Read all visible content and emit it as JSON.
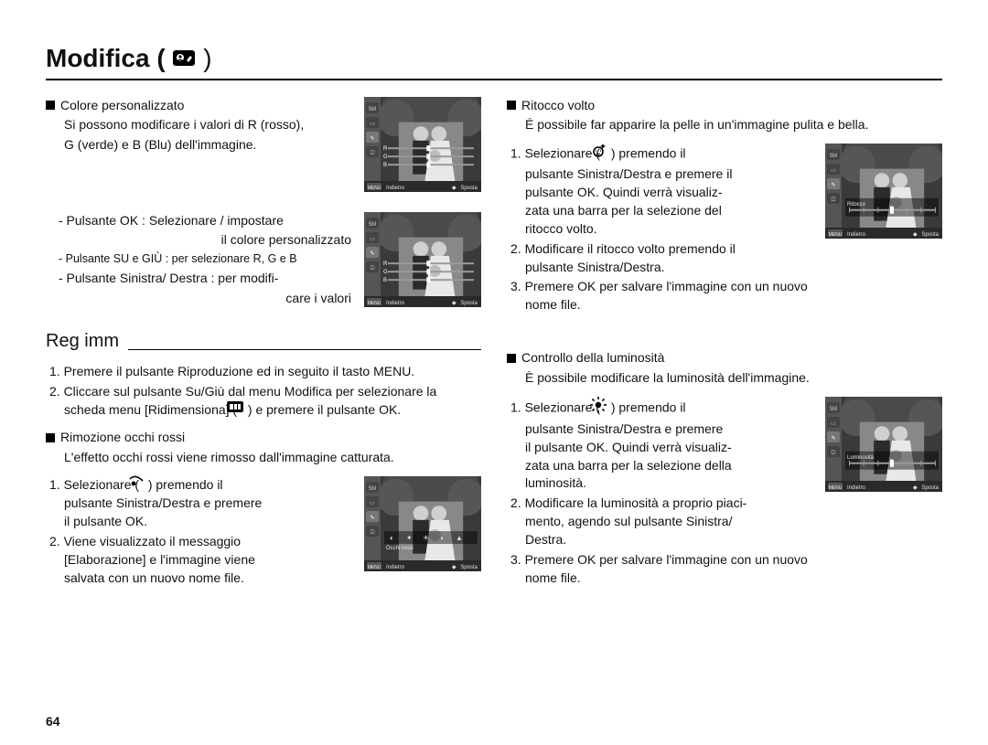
{
  "page_number": "64",
  "title": "Modifica (",
  "title_close": ")",
  "title_icon": "edit-person",
  "left": {
    "custom_color": {
      "heading": "Colore personalizzato",
      "desc_l1": "Si possono modificare i valori di R (rosso),",
      "desc_l2": "G (verde) e B (Blu) dell'immagine.",
      "b_ok": "- Pulsante OK : Selezionare / impostare",
      "b_ok2": "il colore personalizzato",
      "b_updown": "- Pulsante SU e GIÙ : per selezionare R, G e B",
      "b_lr": "- Pulsante Sinistra/ Destra : per modifi-",
      "b_lr2": "care i valori"
    },
    "regimm": {
      "heading": "Reg imm",
      "step1": "1. Premere il pulsante Riproduzione ed in seguito il tasto MENU.",
      "step2a": "2. Cliccare sul pulsante Su/Giù dal menu Modifica per selezionare la",
      "step2b": "scheda menu [Ridimensiona] (",
      "step2c": ") e premere il pulsante OK."
    },
    "redeye": {
      "heading": "Rimozione occhi rossi",
      "desc": "L'effetto occhi rossi viene rimosso dall'immagine catturata.",
      "s1a": "1. Selezionare (",
      "s1b": ") premendo il",
      "s1c": "pulsante Sinistra/Destra e  premere",
      "s1d": "il pulsante OK.",
      "s2a": "2. Viene visualizzato il messaggio",
      "s2b": "[Elaborazione] e l'immagine viene",
      "s2c": "salvata con un nuovo nome file."
    }
  },
  "right": {
    "face": {
      "heading": "Ritocco volto",
      "desc": "É possibile far apparire la pelle in un'immagine pulita e bella.",
      "s1a": "1. Selezionare (",
      "s1b": ") premendo il",
      "s1c": "pulsante Sinistra/Destra e premere il",
      "s1d": "pulsante OK. Quindi verrà visualiz-",
      "s1e": "zata una barra per la selezione del",
      "s1f": "ritocco volto.",
      "s2a": "2. Modificare il ritocco volto premendo il",
      "s2b": "pulsante Sinistra/Destra.",
      "s3a": "3. Premere OK per salvare l'immagine con un nuovo",
      "s3b": "nome file."
    },
    "bright": {
      "heading": "Controllo della luminosità",
      "desc": "È possibile modificare la luminosità dell'immagine.",
      "s1a": "1. Selezionare (",
      "s1b": ") premendo il",
      "s1c": "pulsante Sinistra/Destra e premere",
      "s1d": "il pulsante OK. Quindi verrà visualiz-",
      "s1e": "zata una barra per la selezione della",
      "s1f": "luminosità.",
      "s2a": "2. Modificare la luminosità a proprio piaci-",
      "s2b": "mento, agendo sul pulsante Sinistra/",
      "s2c": "Destra.",
      "s3": "3. Premere OK per salvare l'immagine con un nuovo nome file."
    }
  },
  "screenshot_labels": {
    "back": "Indietro",
    "move": "Sposta",
    "redeye_label": "Occhi rossi",
    "face_label": "Ritocco",
    "bright_label": "Luminosità"
  },
  "colors": {
    "frame_bg": "#6b6b6b",
    "frame_border": "#000000",
    "sidebar_bg": "#555555",
    "sidebar_icon": "#cccccc",
    "sidebar_icon_active": "#ffffff",
    "slider_track": "#9a9a9a",
    "slider_knob": "#ffffff",
    "bottombar_bg": "#2a2a2a",
    "bottombar_text": "#e0e0e0",
    "photo_dark": "#3a3a3a",
    "photo_light": "#d0d0d0",
    "label_text": "#e8e8e8"
  }
}
